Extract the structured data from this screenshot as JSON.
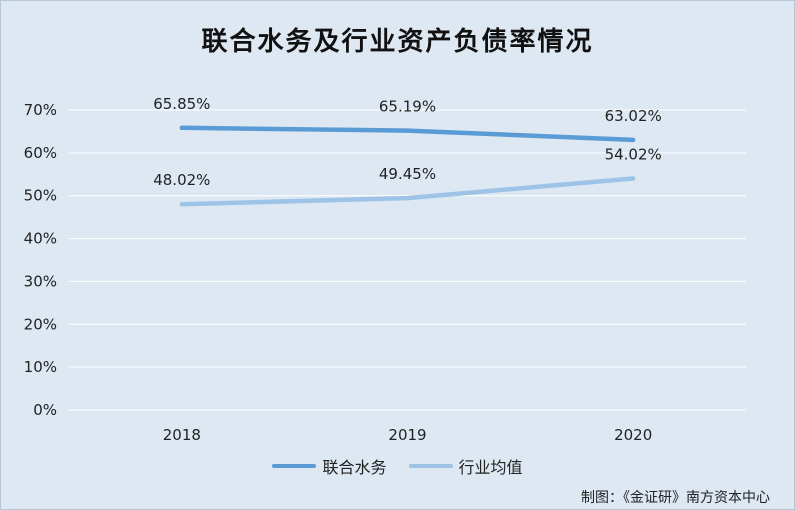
{
  "chart_data": {
    "type": "line",
    "title": "联合水务及行业资产负债率情况",
    "categories": [
      "2018",
      "2019",
      "2020"
    ],
    "series": [
      {
        "name": "联合水务",
        "values": [
          65.85,
          65.19,
          63.02
        ],
        "labels": [
          "65.85%",
          "65.19%",
          "63.02%"
        ],
        "color": "#5b9bd5"
      },
      {
        "name": "行业均值",
        "values": [
          48.02,
          49.45,
          54.02
        ],
        "labels": [
          "48.02%",
          "49.45%",
          "54.02%"
        ],
        "color": "#9dc3e6"
      }
    ],
    "ylim": [
      0,
      70
    ],
    "yticks": [
      0,
      10,
      20,
      30,
      40,
      50,
      60,
      70
    ],
    "ytick_labels": [
      "0%",
      "10%",
      "20%",
      "30%",
      "40%",
      "50%",
      "60%",
      "70%"
    ],
    "grid": true,
    "legend_position": "bottom"
  },
  "source_note": "制图：《金证研》南方资本中心",
  "colors": {
    "background": "#dde8f3",
    "grid": "#ffffff"
  }
}
